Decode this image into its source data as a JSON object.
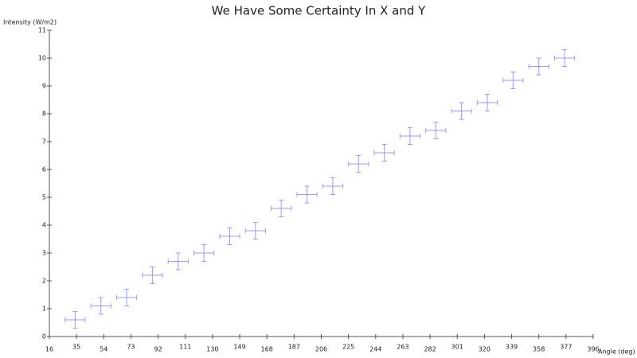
{
  "chart_data": {
    "type": "errorbar",
    "title": "We Have Some Certainty In X and Y",
    "x_label": "Angle (deg)",
    "y_label": "Intensity (W/m2)",
    "xlim": [
      16,
      396
    ],
    "ylim": [
      0,
      11
    ],
    "xticks": [
      16,
      35,
      54,
      73,
      92,
      111,
      130,
      149,
      168,
      187,
      206,
      225,
      244,
      263,
      282,
      301,
      320,
      339,
      358,
      377,
      396
    ],
    "yticks": [
      0,
      1,
      2,
      3,
      4,
      5,
      6,
      7,
      8,
      9,
      10,
      11
    ],
    "series": [
      {
        "color": "#9a9aff",
        "x": [
          34,
          52,
          70,
          88,
          106,
          124,
          142,
          160,
          178,
          196,
          214,
          232,
          250,
          268,
          286,
          304,
          322,
          340,
          358,
          376
        ],
        "values": [
          0.6,
          1.1,
          1.4,
          2.2,
          2.7,
          3.0,
          3.6,
          3.8,
          4.6,
          5.1,
          5.4,
          6.2,
          6.6,
          7.2,
          7.4,
          8.1,
          8.4,
          9.2,
          9.7,
          10.0
        ],
        "xerr": 7,
        "yerr": 0.3
      }
    ]
  }
}
